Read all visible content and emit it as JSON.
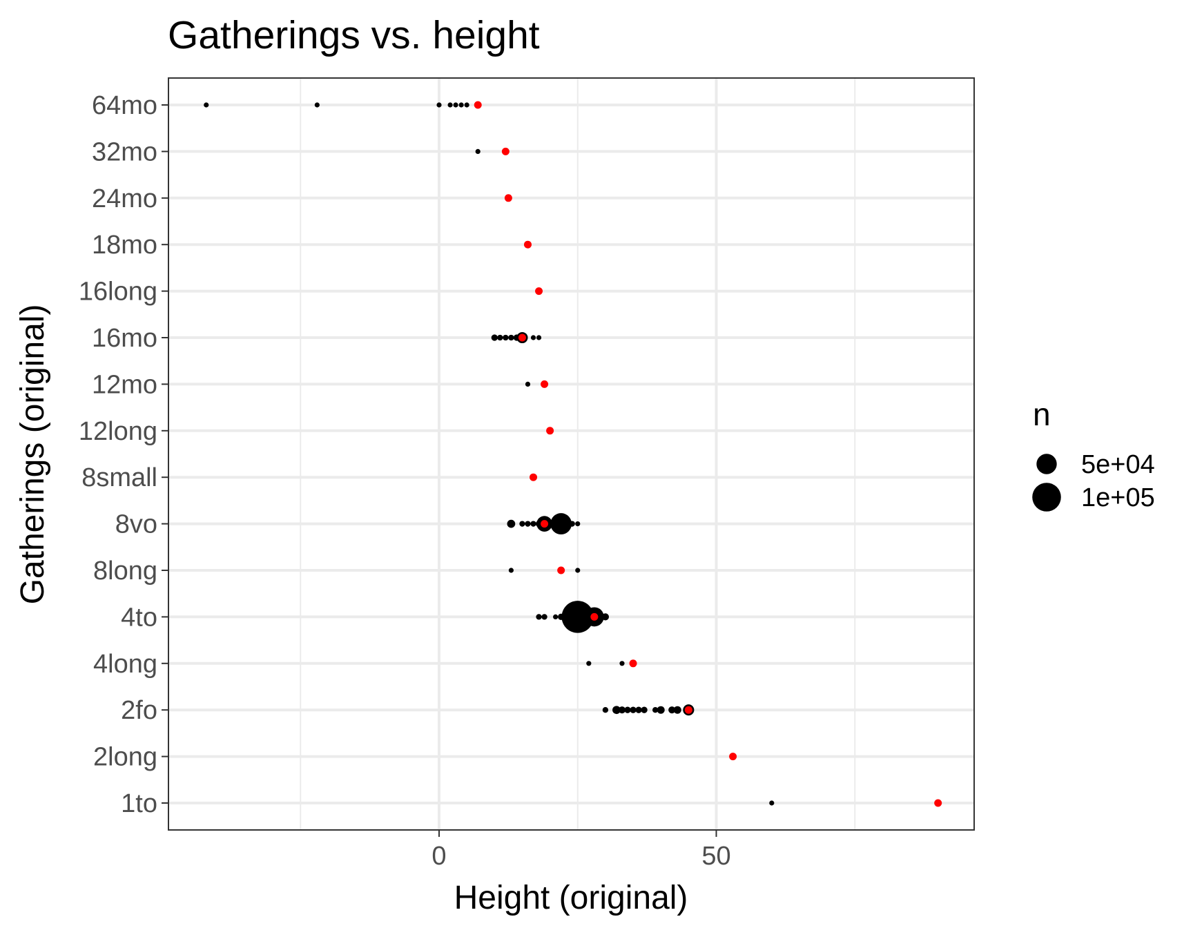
{
  "chart_data": {
    "type": "scatter",
    "title": "Gatherings vs. height",
    "xlabel": "Height (original)",
    "ylabel": "Gatherings (original)",
    "xlim": [
      -48,
      96
    ],
    "x_ticks": [
      0,
      50
    ],
    "x_minor_ticks": [
      -25,
      25,
      75
    ],
    "categories": [
      "1to",
      "2long",
      "2fo",
      "4long",
      "4to",
      "8long",
      "8vo",
      "8small",
      "12long",
      "12mo",
      "16mo",
      "16long",
      "18mo",
      "24mo",
      "32mo",
      "64mo"
    ],
    "grid": true,
    "legend": {
      "title": "n",
      "placement": "right",
      "entries": [
        {
          "label": "5e+04",
          "n": 50000
        },
        {
          "label": "1e+05",
          "n": 100000
        }
      ]
    },
    "colors": {
      "points": "#000000",
      "mean": "#ff0000"
    },
    "series": [
      {
        "kind": "points",
        "points": [
          {
            "y": "64mo",
            "x": -42,
            "n": 3000
          },
          {
            "y": "64mo",
            "x": -22,
            "n": 3000
          },
          {
            "y": "64mo",
            "x": 0,
            "n": 3000
          },
          {
            "y": "64mo",
            "x": 2,
            "n": 3000
          },
          {
            "y": "64mo",
            "x": 3,
            "n": 3000
          },
          {
            "y": "64mo",
            "x": 4,
            "n": 3000
          },
          {
            "y": "64mo",
            "x": 5,
            "n": 3000
          },
          {
            "y": "32mo",
            "x": 7,
            "n": 3000
          },
          {
            "y": "16mo",
            "x": 10,
            "n": 5000
          },
          {
            "y": "16mo",
            "x": 11,
            "n": 4000
          },
          {
            "y": "16mo",
            "x": 12,
            "n": 4000
          },
          {
            "y": "16mo",
            "x": 13,
            "n": 4000
          },
          {
            "y": "16mo",
            "x": 14,
            "n": 5000
          },
          {
            "y": "16mo",
            "x": 15,
            "n": 15000
          },
          {
            "y": "16mo",
            "x": 17,
            "n": 3000
          },
          {
            "y": "16mo",
            "x": 18,
            "n": 3000
          },
          {
            "y": "12mo",
            "x": 16,
            "n": 3000
          },
          {
            "y": "8vo",
            "x": 13,
            "n": 8000
          },
          {
            "y": "8vo",
            "x": 15,
            "n": 4000
          },
          {
            "y": "8vo",
            "x": 16,
            "n": 4000
          },
          {
            "y": "8vo",
            "x": 17,
            "n": 4000
          },
          {
            "y": "8vo",
            "x": 18,
            "n": 5000
          },
          {
            "y": "8vo",
            "x": 19,
            "n": 30000
          },
          {
            "y": "8vo",
            "x": 22,
            "n": 55000
          },
          {
            "y": "8vo",
            "x": 24,
            "n": 4000
          },
          {
            "y": "8vo",
            "x": 25,
            "n": 3000
          },
          {
            "y": "8long",
            "x": 13,
            "n": 3000
          },
          {
            "y": "8long",
            "x": 25,
            "n": 3000
          },
          {
            "y": "4to",
            "x": 18,
            "n": 4000
          },
          {
            "y": "4to",
            "x": 19,
            "n": 4000
          },
          {
            "y": "4to",
            "x": 21,
            "n": 3000
          },
          {
            "y": "4to",
            "x": 22,
            "n": 5000
          },
          {
            "y": "4to",
            "x": 23,
            "n": 8000
          },
          {
            "y": "4to",
            "x": 24,
            "n": 20000
          },
          {
            "y": "4to",
            "x": 25,
            "n": 125000
          },
          {
            "y": "4to",
            "x": 27,
            "n": 15000
          },
          {
            "y": "4to",
            "x": 28,
            "n": 45000
          },
          {
            "y": "4to",
            "x": 30,
            "n": 6000
          },
          {
            "y": "4long",
            "x": 27,
            "n": 3000
          },
          {
            "y": "4long",
            "x": 33,
            "n": 3000
          },
          {
            "y": "2fo",
            "x": 30,
            "n": 4000
          },
          {
            "y": "2fo",
            "x": 32,
            "n": 8000
          },
          {
            "y": "2fo",
            "x": 33,
            "n": 6000
          },
          {
            "y": "2fo",
            "x": 34,
            "n": 5000
          },
          {
            "y": "2fo",
            "x": 35,
            "n": 5000
          },
          {
            "y": "2fo",
            "x": 36,
            "n": 5000
          },
          {
            "y": "2fo",
            "x": 37,
            "n": 5000
          },
          {
            "y": "2fo",
            "x": 39,
            "n": 4000
          },
          {
            "y": "2fo",
            "x": 40,
            "n": 7000
          },
          {
            "y": "2fo",
            "x": 42,
            "n": 6000
          },
          {
            "y": "2fo",
            "x": 43,
            "n": 7000
          },
          {
            "y": "2fo",
            "x": 45,
            "n": 15000
          },
          {
            "y": "1to",
            "x": 60,
            "n": 3000
          }
        ]
      },
      {
        "kind": "mean",
        "points": [
          {
            "y": "64mo",
            "x": 7
          },
          {
            "y": "32mo",
            "x": 12
          },
          {
            "y": "24mo",
            "x": 12.5
          },
          {
            "y": "18mo",
            "x": 16
          },
          {
            "y": "16long",
            "x": 18
          },
          {
            "y": "16mo",
            "x": 15
          },
          {
            "y": "12mo",
            "x": 19
          },
          {
            "y": "12long",
            "x": 20
          },
          {
            "y": "8small",
            "x": 17
          },
          {
            "y": "8vo",
            "x": 19
          },
          {
            "y": "8long",
            "x": 22
          },
          {
            "y": "4to",
            "x": 28
          },
          {
            "y": "4long",
            "x": 35
          },
          {
            "y": "2fo",
            "x": 45
          },
          {
            "y": "2long",
            "x": 53
          },
          {
            "y": "1to",
            "x": 90
          }
        ]
      }
    ]
  }
}
